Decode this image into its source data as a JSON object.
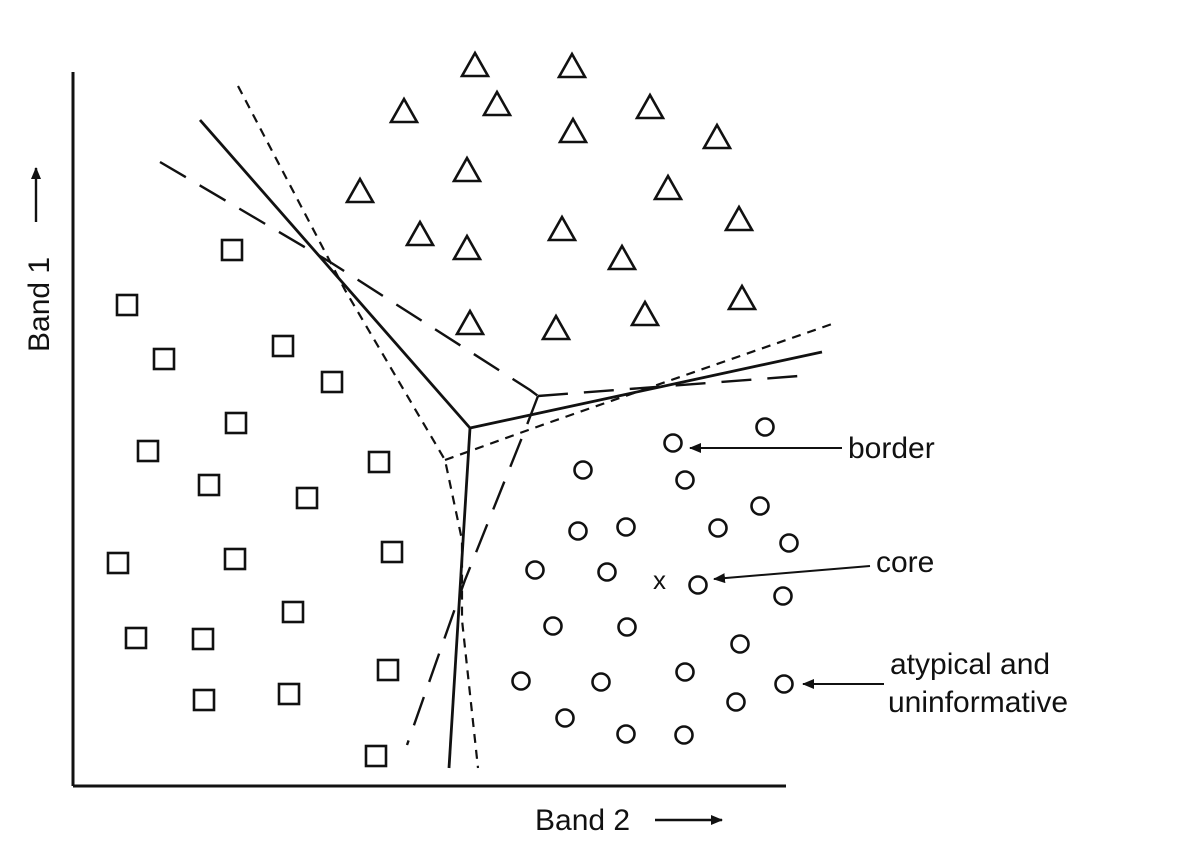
{
  "axes": {
    "x_label": "Band 2",
    "y_label": "Band 1"
  },
  "annotations": {
    "border": "border",
    "core": "core",
    "core_marker": "x",
    "atypical_line1": "atypical and",
    "atypical_line2": "uninformative"
  },
  "class_shapes": {
    "class_a": "square",
    "class_b": "triangle",
    "class_c": "circle"
  }
}
